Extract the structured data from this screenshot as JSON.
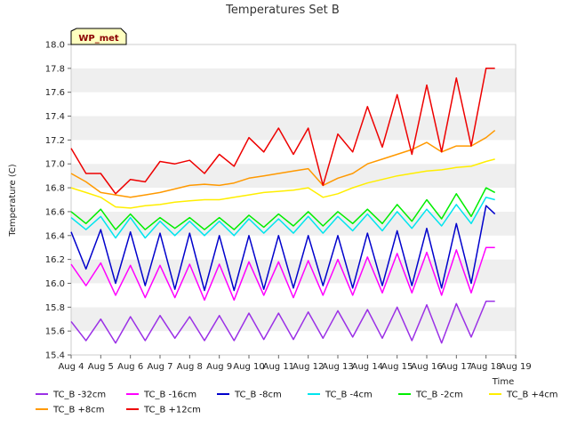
{
  "chart_data": {
    "type": "line",
    "title": "Temperatures Set B",
    "xlabel": "Time",
    "ylabel": "Temperature (C)",
    "ylim": [
      15.4,
      18.0
    ],
    "xlim": [
      0,
      15
    ],
    "yticks": [
      "15.4",
      "15.6",
      "15.8",
      "16.0",
      "16.2",
      "16.4",
      "16.6",
      "16.8",
      "17.0",
      "17.2",
      "17.4",
      "17.6",
      "17.8",
      "18.0"
    ],
    "xticks": [
      "Aug 4",
      "Aug 5",
      "Aug 6",
      "Aug 7",
      "Aug 8",
      "Aug 9",
      "Aug 10",
      "Aug 11",
      "Aug 12",
      "Aug 13",
      "Aug 14",
      "Aug 15",
      "Aug 16",
      "Aug 17",
      "Aug 18",
      "Aug 19"
    ],
    "station_badge": "WP_met",
    "x_days": [
      0.0,
      0.5,
      1.0,
      1.5,
      2.0,
      2.5,
      3.0,
      3.5,
      4.0,
      4.5,
      5.0,
      5.5,
      6.0,
      6.5,
      7.0,
      7.5,
      8.0,
      8.5,
      9.0,
      9.5,
      10.0,
      10.5,
      11.0,
      11.5,
      12.0,
      12.5,
      13.0,
      13.5,
      14.0,
      14.3
    ],
    "series": [
      {
        "name": "TC_B -32cm",
        "color": "#9b30e6",
        "values": [
          15.68,
          15.52,
          15.7,
          15.5,
          15.72,
          15.52,
          15.73,
          15.54,
          15.72,
          15.52,
          15.73,
          15.52,
          15.75,
          15.53,
          15.75,
          15.53,
          15.76,
          15.54,
          15.77,
          15.55,
          15.78,
          15.54,
          15.8,
          15.52,
          15.82,
          15.5,
          15.83,
          15.55,
          15.85,
          15.85
        ]
      },
      {
        "name": "TC_B -16cm",
        "color": "#ff00ff",
        "values": [
          16.16,
          15.98,
          16.17,
          15.9,
          16.15,
          15.88,
          16.15,
          15.88,
          16.16,
          15.86,
          16.16,
          15.86,
          16.18,
          15.9,
          16.18,
          15.88,
          16.19,
          15.9,
          16.2,
          15.9,
          16.22,
          15.92,
          16.25,
          15.92,
          16.26,
          15.9,
          16.28,
          15.92,
          16.3,
          16.3
        ]
      },
      {
        "name": "TC_B -8cm",
        "color": "#0000cc",
        "values": [
          16.43,
          16.12,
          16.45,
          16.0,
          16.43,
          15.98,
          16.42,
          15.95,
          16.42,
          15.94,
          16.4,
          15.94,
          16.4,
          15.95,
          16.4,
          15.96,
          16.4,
          15.98,
          16.4,
          15.96,
          16.42,
          15.98,
          16.44,
          15.98,
          16.46,
          15.96,
          16.5,
          16.0,
          16.65,
          16.58
        ]
      },
      {
        "name": "TC_B -4cm",
        "color": "#00e5ee",
        "values": [
          16.55,
          16.45,
          16.56,
          16.38,
          16.55,
          16.38,
          16.52,
          16.4,
          16.52,
          16.4,
          16.52,
          16.4,
          16.54,
          16.42,
          16.54,
          16.42,
          16.56,
          16.42,
          16.56,
          16.44,
          16.58,
          16.44,
          16.6,
          16.46,
          16.62,
          16.48,
          16.66,
          16.5,
          16.72,
          16.7
        ]
      },
      {
        "name": "TC_B -2cm",
        "color": "#00ee00",
        "values": [
          16.6,
          16.5,
          16.62,
          16.45,
          16.58,
          16.45,
          16.55,
          16.46,
          16.55,
          16.45,
          16.55,
          16.45,
          16.57,
          16.47,
          16.58,
          16.48,
          16.6,
          16.48,
          16.6,
          16.5,
          16.62,
          16.5,
          16.66,
          16.52,
          16.7,
          16.54,
          16.75,
          16.56,
          16.8,
          16.76
        ]
      },
      {
        "name": "TC_B +4cm",
        "color": "#ffee00",
        "values": [
          16.8,
          16.76,
          16.72,
          16.64,
          16.63,
          16.65,
          16.66,
          16.68,
          16.69,
          16.7,
          16.7,
          16.72,
          16.74,
          16.76,
          16.77,
          16.78,
          16.8,
          16.72,
          16.75,
          16.8,
          16.84,
          16.87,
          16.9,
          16.92,
          16.94,
          16.95,
          16.97,
          16.98,
          17.02,
          17.04
        ]
      },
      {
        "name": "TC_B +8cm",
        "color": "#ff9900",
        "values": [
          16.92,
          16.85,
          16.76,
          16.74,
          16.72,
          16.74,
          16.76,
          16.79,
          16.82,
          16.83,
          16.82,
          16.84,
          16.88,
          16.9,
          16.92,
          16.94,
          16.96,
          16.82,
          16.88,
          16.92,
          17.0,
          17.04,
          17.08,
          17.12,
          17.18,
          17.1,
          17.15,
          17.15,
          17.22,
          17.28
        ]
      },
      {
        "name": "TC_B +12cm",
        "color": "#ee0000",
        "values": [
          17.13,
          16.92,
          16.92,
          16.75,
          16.87,
          16.85,
          17.02,
          17.0,
          17.03,
          16.92,
          17.08,
          16.98,
          17.22,
          17.1,
          17.3,
          17.08,
          17.3,
          16.82,
          17.25,
          17.1,
          17.48,
          17.14,
          17.58,
          17.08,
          17.66,
          17.1,
          17.72,
          17.15,
          17.8,
          17.8
        ]
      }
    ]
  }
}
